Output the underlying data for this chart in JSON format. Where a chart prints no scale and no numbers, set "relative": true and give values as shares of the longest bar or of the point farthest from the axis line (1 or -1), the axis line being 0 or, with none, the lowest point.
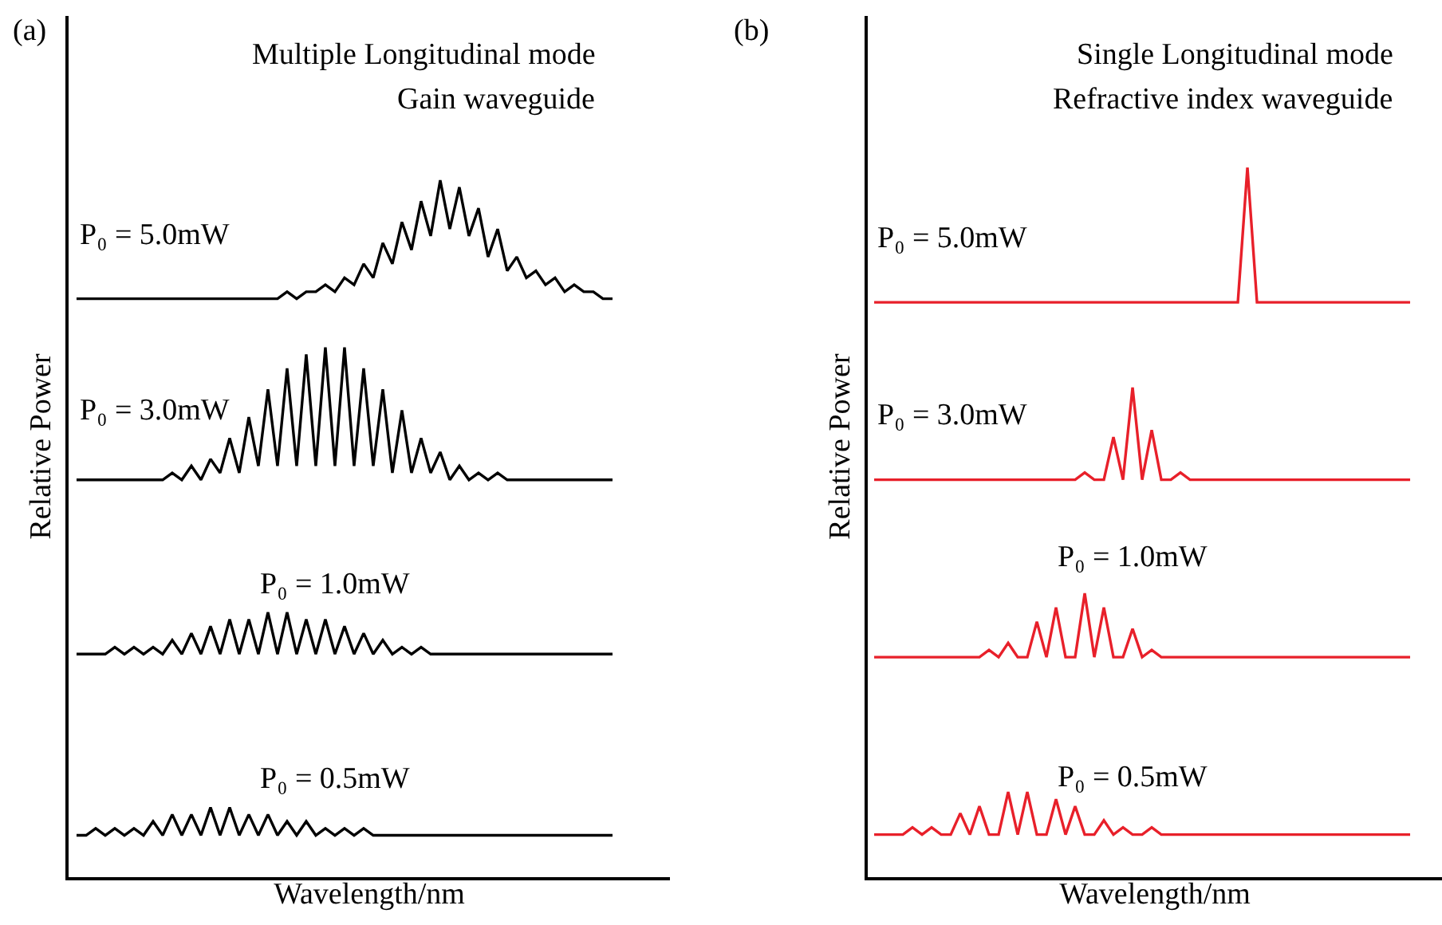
{
  "chart_data": [
    {
      "type": "line",
      "relative": true,
      "tick_labels": false,
      "title": "Multiple Longitudinal mode",
      "subtitle": "Gain waveguide",
      "xlabel": "Wavelength/nm",
      "ylabel": "Relative Power",
      "annotations": [
        "(a)"
      ],
      "categories": [
        null,
        null,
        null,
        null,
        null,
        null,
        null,
        null,
        null,
        null,
        null,
        null,
        null,
        null,
        null,
        null,
        null,
        null,
        null,
        null,
        null,
        null,
        null,
        null,
        null,
        null,
        null,
        null,
        null,
        null,
        null,
        null,
        null,
        null,
        null,
        null,
        null,
        null,
        null,
        null,
        null,
        null,
        null,
        null,
        null,
        null,
        null,
        null,
        null,
        null,
        null,
        null,
        null,
        null,
        null,
        null,
        null
      ],
      "series": [
        {
          "name": "P₀ = 5.0mW",
          "color": "#000000",
          "values": [
            0.83,
            0.83,
            0.83,
            0.83,
            0.83,
            0.83,
            0.83,
            0.83,
            0.83,
            0.83,
            0.83,
            0.83,
            0.83,
            0.83,
            0.83,
            0.83,
            0.83,
            0.83,
            0.83,
            0.83,
            0.83,
            0.83,
            0.84,
            0.83,
            0.84,
            0.84,
            0.85,
            0.84,
            0.86,
            0.85,
            0.88,
            0.86,
            0.91,
            0.88,
            0.94,
            0.9,
            0.97,
            0.92,
            1.0,
            0.93,
            0.99,
            0.92,
            0.96,
            0.89,
            0.93,
            0.87,
            0.89,
            0.86,
            0.87,
            0.85,
            0.86,
            0.84,
            0.85,
            0.84,
            0.84,
            0.83,
            0.83
          ]
        },
        {
          "name": "P₀ = 3.0mW",
          "color": "#000000",
          "values": [
            0.57,
            0.57,
            0.57,
            0.57,
            0.57,
            0.57,
            0.57,
            0.57,
            0.57,
            0.57,
            0.58,
            0.57,
            0.59,
            0.57,
            0.6,
            0.58,
            0.63,
            0.58,
            0.66,
            0.59,
            0.7,
            0.59,
            0.73,
            0.59,
            0.75,
            0.59,
            0.76,
            0.59,
            0.76,
            0.59,
            0.73,
            0.59,
            0.7,
            0.58,
            0.67,
            0.58,
            0.63,
            0.58,
            0.61,
            0.57,
            0.59,
            0.57,
            0.58,
            0.57,
            0.58,
            0.57,
            0.57,
            0.57,
            0.57,
            0.57,
            0.57,
            0.57,
            0.57,
            0.57,
            0.57,
            0.57,
            0.57
          ]
        },
        {
          "name": "P₀ = 1.0mW",
          "color": "#000000",
          "values": [
            0.32,
            0.32,
            0.32,
            0.32,
            0.33,
            0.32,
            0.33,
            0.32,
            0.33,
            0.32,
            0.34,
            0.32,
            0.35,
            0.32,
            0.36,
            0.32,
            0.37,
            0.32,
            0.37,
            0.32,
            0.38,
            0.32,
            0.38,
            0.32,
            0.37,
            0.32,
            0.37,
            0.32,
            0.36,
            0.32,
            0.35,
            0.32,
            0.34,
            0.32,
            0.33,
            0.32,
            0.33,
            0.32,
            0.32,
            0.32,
            0.32,
            0.32,
            0.32,
            0.32,
            0.32,
            0.32,
            0.32,
            0.32,
            0.32,
            0.32,
            0.32,
            0.32,
            0.32,
            0.32,
            0.32,
            0.32,
            0.32
          ]
        },
        {
          "name": "P₀ = 0.5mW",
          "color": "#000000",
          "values": [
            0.06,
            0.06,
            0.07,
            0.06,
            0.07,
            0.06,
            0.07,
            0.06,
            0.08,
            0.06,
            0.09,
            0.06,
            0.09,
            0.06,
            0.1,
            0.06,
            0.1,
            0.06,
            0.09,
            0.06,
            0.09,
            0.06,
            0.08,
            0.06,
            0.08,
            0.06,
            0.07,
            0.06,
            0.07,
            0.06,
            0.07,
            0.06,
            0.06,
            0.06,
            0.06,
            0.06,
            0.06,
            0.06,
            0.06,
            0.06,
            0.06,
            0.06,
            0.06,
            0.06,
            0.06,
            0.06,
            0.06,
            0.06,
            0.06,
            0.06,
            0.06,
            0.06,
            0.06,
            0.06,
            0.06,
            0.06,
            0.06
          ]
        }
      ]
    },
    {
      "type": "line",
      "relative": true,
      "tick_labels": false,
      "title": "Single Longitudinal mode",
      "subtitle": "Refractive index waveguide",
      "xlabel": "Wavelength/nm",
      "ylabel": "Relative Power",
      "annotations": [
        "(b)"
      ],
      "categories": [
        null,
        null,
        null,
        null,
        null,
        null,
        null,
        null,
        null,
        null,
        null,
        null,
        null,
        null,
        null,
        null,
        null,
        null,
        null,
        null,
        null,
        null,
        null,
        null,
        null,
        null,
        null,
        null,
        null,
        null,
        null,
        null,
        null,
        null,
        null,
        null,
        null,
        null,
        null,
        null,
        null,
        null,
        null,
        null,
        null,
        null,
        null,
        null,
        null,
        null,
        null,
        null,
        null,
        null,
        null,
        null,
        null
      ],
      "series": [
        {
          "name": "P₀ = 5.0mW",
          "color": "#e8202a",
          "values": [
            0.81,
            0.81,
            0.81,
            0.81,
            0.81,
            0.81,
            0.81,
            0.81,
            0.81,
            0.81,
            0.81,
            0.81,
            0.81,
            0.81,
            0.81,
            0.81,
            0.81,
            0.81,
            0.81,
            0.81,
            0.81,
            0.81,
            0.81,
            0.81,
            0.81,
            0.81,
            0.81,
            0.81,
            0.81,
            0.81,
            0.81,
            0.81,
            0.81,
            0.81,
            0.81,
            0.81,
            0.81,
            0.81,
            0.81,
            1.0,
            0.81,
            0.81,
            0.81,
            0.81,
            0.81,
            0.81,
            0.81,
            0.81,
            0.81,
            0.81,
            0.81,
            0.81,
            0.81,
            0.81,
            0.81,
            0.81,
            0.81
          ]
        },
        {
          "name": "P₀ = 3.0mW",
          "color": "#e8202a",
          "values": [
            0.56,
            0.56,
            0.56,
            0.56,
            0.56,
            0.56,
            0.56,
            0.56,
            0.56,
            0.56,
            0.56,
            0.56,
            0.56,
            0.56,
            0.56,
            0.56,
            0.56,
            0.56,
            0.56,
            0.56,
            0.56,
            0.56,
            0.57,
            0.56,
            0.56,
            0.62,
            0.56,
            0.69,
            0.56,
            0.63,
            0.56,
            0.56,
            0.57,
            0.56,
            0.56,
            0.56,
            0.56,
            0.56,
            0.56,
            0.56,
            0.56,
            0.56,
            0.56,
            0.56,
            0.56,
            0.56,
            0.56,
            0.56,
            0.56,
            0.56,
            0.56,
            0.56,
            0.56,
            0.56,
            0.56,
            0.56,
            0.56
          ]
        },
        {
          "name": "P₀ = 1.0mW",
          "color": "#e8202a",
          "values": [
            0.31,
            0.31,
            0.31,
            0.31,
            0.31,
            0.31,
            0.31,
            0.31,
            0.31,
            0.31,
            0.31,
            0.31,
            0.32,
            0.31,
            0.33,
            0.31,
            0.31,
            0.36,
            0.31,
            0.38,
            0.31,
            0.31,
            0.4,
            0.31,
            0.38,
            0.31,
            0.31,
            0.35,
            0.31,
            0.32,
            0.31,
            0.31,
            0.31,
            0.31,
            0.31,
            0.31,
            0.31,
            0.31,
            0.31,
            0.31,
            0.31,
            0.31,
            0.31,
            0.31,
            0.31,
            0.31,
            0.31,
            0.31,
            0.31,
            0.31,
            0.31,
            0.31,
            0.31,
            0.31,
            0.31,
            0.31,
            0.31
          ]
        },
        {
          "name": "P₀ = 0.5mW",
          "color": "#e8202a",
          "values": [
            0.06,
            0.06,
            0.06,
            0.06,
            0.07,
            0.06,
            0.07,
            0.06,
            0.06,
            0.09,
            0.06,
            0.1,
            0.06,
            0.06,
            0.12,
            0.06,
            0.12,
            0.06,
            0.06,
            0.11,
            0.06,
            0.1,
            0.06,
            0.06,
            0.08,
            0.06,
            0.07,
            0.06,
            0.06,
            0.07,
            0.06,
            0.06,
            0.06,
            0.06,
            0.06,
            0.06,
            0.06,
            0.06,
            0.06,
            0.06,
            0.06,
            0.06,
            0.06,
            0.06,
            0.06,
            0.06,
            0.06,
            0.06,
            0.06,
            0.06,
            0.06,
            0.06,
            0.06,
            0.06,
            0.06,
            0.06,
            0.06
          ]
        }
      ]
    }
  ]
}
